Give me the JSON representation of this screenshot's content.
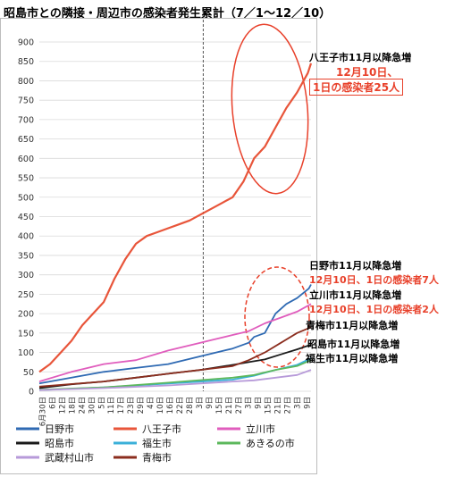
{
  "title": "昭島市との隣接・周辺市の感染者発生累計（7／1～12／10）",
  "annotations": {
    "hachioji_line1": "八王子市11月以降急増",
    "hachioji_line2": "12月10日、",
    "hachioji_line3": "1日の感染者25人",
    "hino_line1": "日野市11月以降急増",
    "hino_line2": "12月10日、1日の感染者7人",
    "tachikawa_line1": "立川市11月以降急増",
    "tachikawa_line2": "12月10日、1日の感染者2人",
    "ome_line1": "青梅市11月以降急増",
    "akishima_line1": "昭島市11月以降急増",
    "fussa_line1": "福生市11月以降急増"
  },
  "colors": {
    "hino": "#2f6ab3",
    "hachioji": "#e8553a",
    "tachikawa": "#e05dbd",
    "akishima": "#1a1a1a",
    "fussa": "#3bb0d9",
    "akiruno": "#5cb85c",
    "musashimurayama": "#b79ad9",
    "ome": "#8b2d1e",
    "annotation_red": "#e8402a",
    "grid": "#d9d9d9",
    "divider": "#555555"
  },
  "chart_data": {
    "type": "line",
    "title": "",
    "xlabel": "",
    "ylabel": "",
    "ylim": [
      0,
      900
    ],
    "yticks": [
      0,
      50,
      100,
      150,
      200,
      250,
      300,
      350,
      400,
      450,
      500,
      550,
      600,
      650,
      700,
      750,
      800,
      850,
      900
    ],
    "grid": "horizontal",
    "legend_position": "bottom",
    "x_tick_labels": [
      "6月30日",
      "6日",
      "12日",
      "18日",
      "24日",
      "30日",
      "5日",
      "11日",
      "17日",
      "23日",
      "29日",
      "4日",
      "10日",
      "16日",
      "22日",
      "28日",
      "3日",
      "9日",
      "15日",
      "21日",
      "27日",
      "3日",
      "9日",
      "15日",
      "21日",
      "27日",
      "3日",
      "9日"
    ],
    "divider_after_tick": "3日",
    "series": [
      {
        "name": "日野市",
        "color_key": "hino",
        "days": [
          0,
          30,
          60,
          90,
          120,
          150,
          180,
          195,
          200,
          210,
          220,
          230,
          240,
          251,
          253
        ],
        "values": [
          20,
          35,
          50,
          60,
          70,
          90,
          110,
          125,
          140,
          150,
          200,
          225,
          240,
          265,
          275
        ]
      },
      {
        "name": "八王子市",
        "color_key": "hachioji",
        "days": [
          0,
          10,
          20,
          30,
          40,
          50,
          60,
          70,
          80,
          90,
          100,
          110,
          120,
          130,
          140,
          150,
          160,
          170,
          180,
          190,
          200,
          210,
          220,
          230,
          240,
          250,
          253
        ],
        "values": [
          50,
          70,
          100,
          130,
          170,
          200,
          230,
          290,
          340,
          380,
          400,
          410,
          420,
          430,
          440,
          455,
          470,
          485,
          500,
          540,
          600,
          630,
          680,
          730,
          770,
          820,
          845
        ]
      },
      {
        "name": "立川市",
        "color_key": "tachikawa",
        "days": [
          0,
          30,
          60,
          90,
          120,
          150,
          180,
          195,
          210,
          225,
          240,
          253
        ],
        "values": [
          25,
          50,
          70,
          80,
          105,
          125,
          145,
          155,
          175,
          190,
          205,
          225
        ]
      },
      {
        "name": "昭島市",
        "color_key": "akishima",
        "days": [
          0,
          30,
          60,
          90,
          120,
          150,
          180,
          195,
          210,
          225,
          240,
          253
        ],
        "values": [
          8,
          18,
          25,
          35,
          45,
          55,
          68,
          75,
          82,
          95,
          108,
          120
        ]
      },
      {
        "name": "福生市",
        "color_key": "fussa",
        "days": [
          0,
          60,
          120,
          180,
          200,
          220,
          240,
          253
        ],
        "values": [
          3,
          10,
          20,
          30,
          40,
          55,
          68,
          85
        ]
      },
      {
        "name": "あきるの市",
        "color_key": "akiruno",
        "days": [
          0,
          60,
          120,
          180,
          200,
          220,
          240,
          253
        ],
        "values": [
          4,
          10,
          22,
          35,
          42,
          55,
          65,
          80
        ]
      },
      {
        "name": "武蔵村山市",
        "color_key": "musashimurayama",
        "days": [
          0,
          60,
          120,
          180,
          200,
          220,
          240,
          253
        ],
        "values": [
          3,
          8,
          15,
          25,
          28,
          35,
          42,
          55
        ]
      },
      {
        "name": "青梅市",
        "color_key": "ome",
        "days": [
          0,
          60,
          120,
          180,
          195,
          210,
          225,
          240,
          253
        ],
        "values": [
          12,
          25,
          45,
          65,
          80,
          100,
          125,
          150,
          165
        ]
      }
    ]
  }
}
